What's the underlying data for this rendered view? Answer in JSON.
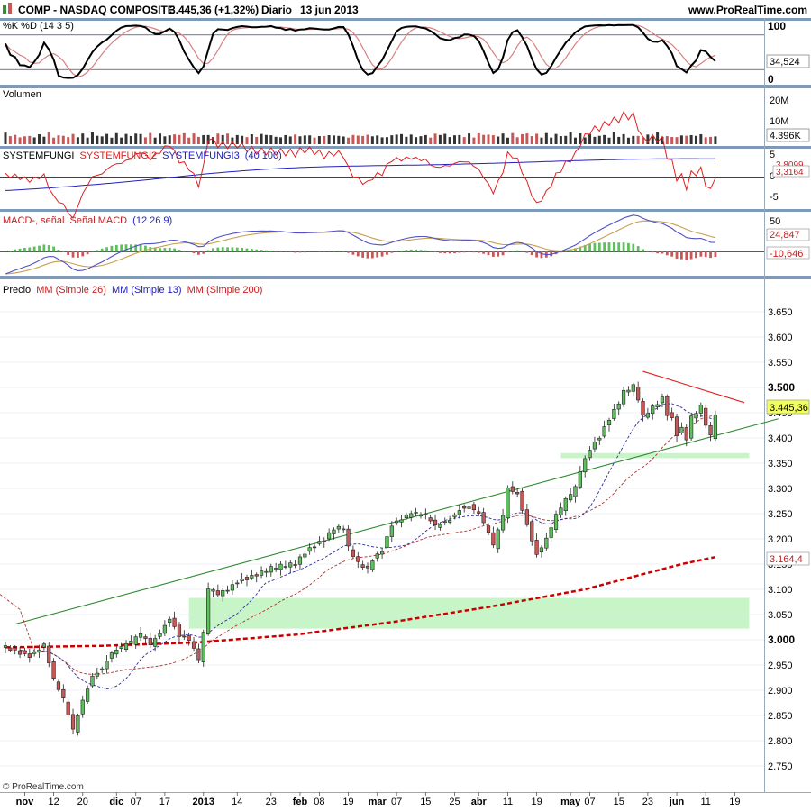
{
  "header": {
    "symbol": "COMP - NASDAQ COMPOSITE",
    "last": "3.445,36 (+1,32%)",
    "period": "Diario",
    "date": "13 jun 2013",
    "source": "www.ProRealTime.com"
  },
  "copyright": "© ProRealTime.com",
  "colors": {
    "bg": "#ffffff",
    "separator": "#7f9ab8",
    "grid": "#dfe6ef",
    "bull": "#3a8a3a",
    "bear": "#c85858",
    "up_green": "#5fbf5f",
    "ma26": "#b03030",
    "ma13": "#2a2aa0",
    "ma200": "#c80000",
    "zone": "#c8f5c8",
    "trend_up": "#2c8a2c",
    "trend_down": "#e02020",
    "stoch_k": "#000000",
    "stoch_d": "#d88080",
    "sf2": "#e02020",
    "sf3": "#2020c0",
    "macd_line": "#5050c8",
    "signal_line": "#c8a050"
  },
  "x_axis": {
    "labels": [
      {
        "text": "nov",
        "i": 4
      },
      {
        "text": "12",
        "i": 10
      },
      {
        "text": "20",
        "i": 16
      },
      {
        "text": "dic",
        "i": 23
      },
      {
        "text": "07",
        "i": 27
      },
      {
        "text": "17",
        "i": 33
      },
      {
        "text": "2013",
        "i": 41
      },
      {
        "text": "14",
        "i": 48
      },
      {
        "text": "23",
        "i": 55
      },
      {
        "text": "feb",
        "i": 61
      },
      {
        "text": "08",
        "i": 65
      },
      {
        "text": "19",
        "i": 71
      },
      {
        "text": "mar",
        "i": 77
      },
      {
        "text": "07",
        "i": 81
      },
      {
        "text": "15",
        "i": 87
      },
      {
        "text": "25",
        "i": 93
      },
      {
        "text": "abr",
        "i": 98
      },
      {
        "text": "11",
        "i": 104
      },
      {
        "text": "19",
        "i": 110
      },
      {
        "text": "may",
        "i": 117
      },
      {
        "text": "07",
        "i": 121
      },
      {
        "text": "15",
        "i": 127
      },
      {
        "text": "23",
        "i": 133
      },
      {
        "text": "jun",
        "i": 139
      },
      {
        "text": "11",
        "i": 145
      },
      {
        "text": "19",
        "i": 151
      }
    ]
  },
  "panels": {
    "stoch": {
      "title": "%K %D (14 3 5)",
      "ticks": [
        "100",
        "0"
      ],
      "last_value": "34,524",
      "ylim": [
        0,
        100
      ],
      "upper": 80,
      "lower": 20
    },
    "volume": {
      "title": "Volumen",
      "ticks": [
        "20M",
        "10M"
      ],
      "last_value": "4.396K",
      "ylim": [
        0,
        25000
      ]
    },
    "systemfungi": {
      "title": "SYSTEMFUNGI",
      "title_sf2": "SYSTEMFUNGI2",
      "title_sf3": "SYSTEMFUNGI3",
      "title_params": "(40 100)",
      "ticks": [
        "5",
        "0",
        "-5"
      ],
      "last_values": [
        "3,8099",
        "3,3164"
      ],
      "ylim": [
        -7,
        6
      ]
    },
    "macd": {
      "title": "MACD-, señal",
      "title_signal": "Señal MACD",
      "title_params": "(12 26 9)",
      "ticks": [
        "50"
      ],
      "last_values": [
        "24,847",
        "-10,646"
      ],
      "ylim": [
        -40,
        65
      ]
    },
    "price": {
      "title": "Precio",
      "title_ma26": "MM (Simple 26)",
      "title_ma13": "MM (Simple 13)",
      "title_ma200": "MM (Simple 200)",
      "ticks": [
        "3.650",
        "3.600",
        "3.550",
        "3.500",
        "3.450",
        "3.400",
        "3.350",
        "3.300",
        "3.250",
        "3.200",
        "3.150",
        "3.100",
        "3.050",
        "3.000",
        "2.950",
        "2.900",
        "2.850",
        "2.800",
        "2.750"
      ],
      "last_price": "3.445,36",
      "ma200_last": "3.164,4",
      "ylim": [
        2725,
        3675
      ]
    }
  },
  "chart_data": {
    "type": "candlestick",
    "title": "COMP - NASDAQ COMPOSITE",
    "x_range": [
      "2012-11-01",
      "2013-06-19"
    ],
    "price_range": [
      2750,
      3650
    ],
    "last_close": 3445.36,
    "change_pct": 1.32,
    "ma200_last": 3164.4,
    "stoch_last": 34.524,
    "volume_last": "4.396K",
    "systemfungi_last": [
      3.8099,
      3.3164
    ],
    "macd_last": [
      24.847,
      -10.646
    ],
    "support_zones": [
      {
        "from": 3022,
        "to": 3083,
        "start_i": 38,
        "end_i": 154
      },
      {
        "from": 3360,
        "to": 3370,
        "start_i": 115,
        "end_i": 154
      }
    ],
    "trendlines": [
      {
        "name": "support",
        "from": {
          "i": 2,
          "v": 3031
        },
        "to": {
          "i": 160,
          "v": 3438
        }
      },
      {
        "name": "resistance",
        "from": {
          "i": 132,
          "v": 3532
        },
        "to": {
          "i": 153,
          "v": 3470
        }
      }
    ],
    "anchors": {
      "close": [
        [
          0,
          2985
        ],
        [
          5,
          2970
        ],
        [
          8,
          2990
        ],
        [
          10,
          2920
        ],
        [
          12,
          2880
        ],
        [
          14,
          2820
        ],
        [
          16,
          2880
        ],
        [
          18,
          2930
        ],
        [
          20,
          2945
        ],
        [
          22,
          2975
        ],
        [
          24,
          2985
        ],
        [
          26,
          2995
        ],
        [
          28,
          3010
        ],
        [
          30,
          2990
        ],
        [
          32,
          3015
        ],
        [
          34,
          3045
        ],
        [
          36,
          3010
        ],
        [
          38,
          3000
        ],
        [
          40,
          2960
        ],
        [
          41,
          3010
        ],
        [
          42,
          3100
        ],
        [
          44,
          3090
        ],
        [
          46,
          3100
        ],
        [
          48,
          3118
        ],
        [
          52,
          3130
        ],
        [
          55,
          3140
        ],
        [
          60,
          3150
        ],
        [
          62,
          3175
        ],
        [
          64,
          3190
        ],
        [
          66,
          3200
        ],
        [
          68,
          3220
        ],
        [
          70,
          3220
        ],
        [
          71,
          3180
        ],
        [
          73,
          3150
        ],
        [
          75,
          3140
        ],
        [
          76,
          3160
        ],
        [
          78,
          3180
        ],
        [
          80,
          3230
        ],
        [
          82,
          3240
        ],
        [
          84,
          3250
        ],
        [
          87,
          3245
        ],
        [
          89,
          3225
        ],
        [
          92,
          3240
        ],
        [
          94,
          3260
        ],
        [
          96,
          3265
        ],
        [
          98,
          3250
        ],
        [
          100,
          3210
        ],
        [
          101,
          3185
        ],
        [
          103,
          3245
        ],
        [
          104,
          3300
        ],
        [
          106,
          3290
        ],
        [
          108,
          3230
        ],
        [
          110,
          3170
        ],
        [
          112,
          3200
        ],
        [
          114,
          3245
        ],
        [
          116,
          3275
        ],
        [
          118,
          3300
        ],
        [
          119,
          3335
        ],
        [
          121,
          3380
        ],
        [
          123,
          3405
        ],
        [
          125,
          3440
        ],
        [
          127,
          3470
        ],
        [
          128,
          3490
        ],
        [
          130,
          3500
        ],
        [
          131,
          3475
        ],
        [
          132,
          3440
        ],
        [
          134,
          3460
        ],
        [
          136,
          3480
        ],
        [
          137,
          3450
        ],
        [
          138,
          3440
        ],
        [
          139,
          3410
        ],
        [
          140,
          3420
        ],
        [
          141,
          3400
        ],
        [
          142,
          3440
        ],
        [
          144,
          3460
        ],
        [
          145,
          3425
        ],
        [
          146,
          3400
        ],
        [
          147,
          3445
        ]
      ]
    },
    "ma200_anchors": [
      [
        0,
        2985
      ],
      [
        20,
        2988
      ],
      [
        40,
        2995
      ],
      [
        60,
        3010
      ],
      [
        80,
        3035
      ],
      [
        100,
        3065
      ],
      [
        120,
        3100
      ],
      [
        140,
        3150
      ],
      [
        147,
        3164
      ]
    ]
  }
}
